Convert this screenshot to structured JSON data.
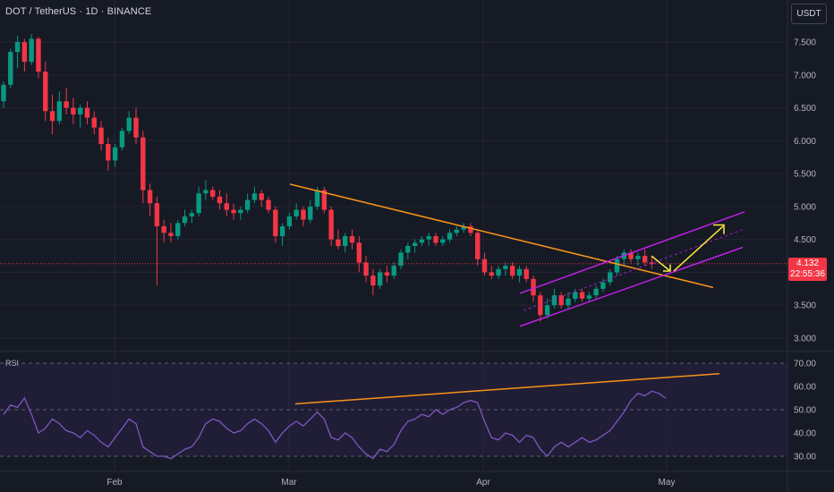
{
  "header": {
    "symbol_line": "DOT / TetherUS · 1D · BINANCE"
  },
  "currency_button": "USDT",
  "rsi_label": "RSI",
  "last_price": {
    "value": "4.132",
    "countdown": "22:55:36"
  },
  "colors": {
    "up": "#089981",
    "down": "#f23645",
    "trendline": "#f7931a",
    "channel": "#c020e8",
    "arrow": "#ffeb3b",
    "rsi_line": "#7e57c2",
    "rsi_band": "#2a2146"
  },
  "chart_data": [
    {
      "type": "candlestick",
      "title": "DOT / TetherUS · 1D · BINANCE",
      "y_ticks": [
        "7.500",
        "7.000",
        "6.500",
        "6.000",
        "5.500",
        "5.000",
        "4.500",
        "4.000",
        "3.500",
        "3.000"
      ],
      "ylim": [
        2.9,
        7.9
      ],
      "x_ticks": [
        "Feb",
        "Mar",
        "Apr",
        "May"
      ],
      "last_price": 4.132,
      "candles": [
        {
          "o": 6.6,
          "h": 6.9,
          "l": 6.5,
          "c": 6.85
        },
        {
          "o": 6.85,
          "h": 7.4,
          "l": 6.8,
          "c": 7.35
        },
        {
          "o": 7.35,
          "h": 7.6,
          "l": 7.1,
          "c": 7.5
        },
        {
          "o": 7.5,
          "h": 7.55,
          "l": 7.05,
          "c": 7.2
        },
        {
          "o": 7.2,
          "h": 7.62,
          "l": 7.15,
          "c": 7.55
        },
        {
          "o": 7.55,
          "h": 7.58,
          "l": 6.95,
          "c": 7.05
        },
        {
          "o": 7.05,
          "h": 7.2,
          "l": 6.3,
          "c": 6.45
        },
        {
          "o": 6.45,
          "h": 6.7,
          "l": 6.1,
          "c": 6.3
        },
        {
          "o": 6.3,
          "h": 6.75,
          "l": 6.25,
          "c": 6.6
        },
        {
          "o": 6.6,
          "h": 6.8,
          "l": 6.4,
          "c": 6.5
        },
        {
          "o": 6.5,
          "h": 6.65,
          "l": 6.25,
          "c": 6.4
        },
        {
          "o": 6.4,
          "h": 6.55,
          "l": 6.2,
          "c": 6.5
        },
        {
          "o": 6.5,
          "h": 6.6,
          "l": 6.25,
          "c": 6.35
        },
        {
          "o": 6.35,
          "h": 6.45,
          "l": 6.1,
          "c": 6.2
        },
        {
          "o": 6.2,
          "h": 6.3,
          "l": 5.85,
          "c": 5.95
        },
        {
          "o": 5.95,
          "h": 6.05,
          "l": 5.55,
          "c": 5.7
        },
        {
          "o": 5.7,
          "h": 5.95,
          "l": 5.6,
          "c": 5.9
        },
        {
          "o": 5.9,
          "h": 6.2,
          "l": 5.85,
          "c": 6.15
        },
        {
          "o": 6.15,
          "h": 6.45,
          "l": 6.1,
          "c": 6.35
        },
        {
          "o": 6.35,
          "h": 6.5,
          "l": 5.95,
          "c": 6.05
        },
        {
          "o": 6.05,
          "h": 6.15,
          "l": 5.05,
          "c": 5.25
        },
        {
          "o": 5.25,
          "h": 5.35,
          "l": 4.85,
          "c": 5.05
        },
        {
          "o": 5.05,
          "h": 5.15,
          "l": 3.8,
          "c": 4.7
        },
        {
          "o": 4.7,
          "h": 4.8,
          "l": 4.45,
          "c": 4.6
        },
        {
          "o": 4.6,
          "h": 4.75,
          "l": 4.45,
          "c": 4.55
        },
        {
          "o": 4.55,
          "h": 4.8,
          "l": 4.5,
          "c": 4.75
        },
        {
          "o": 4.75,
          "h": 4.95,
          "l": 4.7,
          "c": 4.85
        },
        {
          "o": 4.85,
          "h": 4.95,
          "l": 4.75,
          "c": 4.9
        },
        {
          "o": 4.9,
          "h": 5.3,
          "l": 4.85,
          "c": 5.2
        },
        {
          "o": 5.2,
          "h": 5.4,
          "l": 5.1,
          "c": 5.25
        },
        {
          "o": 5.25,
          "h": 5.3,
          "l": 5.1,
          "c": 5.15
        },
        {
          "o": 5.15,
          "h": 5.25,
          "l": 4.95,
          "c": 5.05
        },
        {
          "o": 5.05,
          "h": 5.2,
          "l": 4.85,
          "c": 4.95
        },
        {
          "o": 4.95,
          "h": 5.05,
          "l": 4.8,
          "c": 4.9
        },
        {
          "o": 4.9,
          "h": 5.0,
          "l": 4.8,
          "c": 4.95
        },
        {
          "o": 4.95,
          "h": 5.2,
          "l": 4.9,
          "c": 5.1
        },
        {
          "o": 5.1,
          "h": 5.3,
          "l": 5.05,
          "c": 5.2
        },
        {
          "o": 5.2,
          "h": 5.25,
          "l": 5.0,
          "c": 5.1
        },
        {
          "o": 5.1,
          "h": 5.15,
          "l": 4.9,
          "c": 4.95
        },
        {
          "o": 4.95,
          "h": 5.0,
          "l": 4.45,
          "c": 4.55
        },
        {
          "o": 4.55,
          "h": 4.75,
          "l": 4.4,
          "c": 4.7
        },
        {
          "o": 4.7,
          "h": 4.9,
          "l": 4.65,
          "c": 4.85
        },
        {
          "o": 4.85,
          "h": 5.05,
          "l": 4.8,
          "c": 4.95
        },
        {
          "o": 4.95,
          "h": 5.0,
          "l": 4.7,
          "c": 4.8
        },
        {
          "o": 4.8,
          "h": 5.1,
          "l": 4.75,
          "c": 5.0
        },
        {
          "o": 5.0,
          "h": 5.3,
          "l": 4.95,
          "c": 5.25
        },
        {
          "o": 5.25,
          "h": 5.3,
          "l": 4.9,
          "c": 4.95
        },
        {
          "o": 4.95,
          "h": 5.0,
          "l": 4.4,
          "c": 4.5
        },
        {
          "o": 4.5,
          "h": 4.65,
          "l": 4.35,
          "c": 4.4
        },
        {
          "o": 4.4,
          "h": 4.6,
          "l": 4.3,
          "c": 4.55
        },
        {
          "o": 4.55,
          "h": 4.65,
          "l": 4.35,
          "c": 4.45
        },
        {
          "o": 4.45,
          "h": 4.55,
          "l": 4.0,
          "c": 4.15
        },
        {
          "o": 4.15,
          "h": 4.25,
          "l": 3.85,
          "c": 3.95
        },
        {
          "o": 3.95,
          "h": 4.05,
          "l": 3.65,
          "c": 3.8
        },
        {
          "o": 3.8,
          "h": 4.05,
          "l": 3.75,
          "c": 4.0
        },
        {
          "o": 4.0,
          "h": 4.1,
          "l": 3.85,
          "c": 3.95
        },
        {
          "o": 3.95,
          "h": 4.15,
          "l": 3.9,
          "c": 4.1
        },
        {
          "o": 4.1,
          "h": 4.35,
          "l": 4.05,
          "c": 4.3
        },
        {
          "o": 4.3,
          "h": 4.45,
          "l": 4.2,
          "c": 4.4
        },
        {
          "o": 4.4,
          "h": 4.5,
          "l": 4.3,
          "c": 4.45
        },
        {
          "o": 4.45,
          "h": 4.55,
          "l": 4.4,
          "c": 4.5
        },
        {
          "o": 4.5,
          "h": 4.6,
          "l": 4.4,
          "c": 4.55
        },
        {
          "o": 4.55,
          "h": 4.6,
          "l": 4.4,
          "c": 4.45
        },
        {
          "o": 4.45,
          "h": 4.55,
          "l": 4.4,
          "c": 4.5
        },
        {
          "o": 4.5,
          "h": 4.65,
          "l": 4.45,
          "c": 4.6
        },
        {
          "o": 4.6,
          "h": 4.7,
          "l": 4.55,
          "c": 4.65
        },
        {
          "o": 4.65,
          "h": 4.75,
          "l": 4.6,
          "c": 4.7
        },
        {
          "o": 4.7,
          "h": 4.75,
          "l": 4.55,
          "c": 4.6
        },
        {
          "o": 4.6,
          "h": 4.65,
          "l": 4.1,
          "c": 4.2
        },
        {
          "o": 4.2,
          "h": 4.3,
          "l": 3.95,
          "c": 4.0
        },
        {
          "o": 4.0,
          "h": 4.1,
          "l": 3.9,
          "c": 3.95
        },
        {
          "o": 3.95,
          "h": 4.1,
          "l": 3.9,
          "c": 4.05
        },
        {
          "o": 4.05,
          "h": 4.15,
          "l": 3.95,
          "c": 4.1
        },
        {
          "o": 4.1,
          "h": 4.15,
          "l": 3.9,
          "c": 3.95
        },
        {
          "o": 3.95,
          "h": 4.1,
          "l": 3.85,
          "c": 4.05
        },
        {
          "o": 4.05,
          "h": 4.1,
          "l": 3.85,
          "c": 3.9
        },
        {
          "o": 3.9,
          "h": 3.95,
          "l": 3.55,
          "c": 3.65
        },
        {
          "o": 3.65,
          "h": 3.7,
          "l": 3.25,
          "c": 3.35
        },
        {
          "o": 3.35,
          "h": 3.6,
          "l": 3.3,
          "c": 3.5
        },
        {
          "o": 3.5,
          "h": 3.75,
          "l": 3.45,
          "c": 3.65
        },
        {
          "o": 3.65,
          "h": 3.7,
          "l": 3.45,
          "c": 3.5
        },
        {
          "o": 3.5,
          "h": 3.7,
          "l": 3.45,
          "c": 3.6
        },
        {
          "o": 3.6,
          "h": 3.75,
          "l": 3.55,
          "c": 3.7
        },
        {
          "o": 3.7,
          "h": 3.75,
          "l": 3.55,
          "c": 3.6
        },
        {
          "o": 3.6,
          "h": 3.7,
          "l": 3.55,
          "c": 3.65
        },
        {
          "o": 3.65,
          "h": 3.8,
          "l": 3.6,
          "c": 3.75
        },
        {
          "o": 3.75,
          "h": 3.9,
          "l": 3.7,
          "c": 3.85
        },
        {
          "o": 3.85,
          "h": 4.05,
          "l": 3.8,
          "c": 4.0
        },
        {
          "o": 4.0,
          "h": 4.25,
          "l": 3.95,
          "c": 4.2
        },
        {
          "o": 4.2,
          "h": 4.35,
          "l": 4.1,
          "c": 4.3
        },
        {
          "o": 4.3,
          "h": 4.35,
          "l": 4.15,
          "c": 4.2
        },
        {
          "o": 4.2,
          "h": 4.3,
          "l": 4.1,
          "c": 4.25
        },
        {
          "o": 4.25,
          "h": 4.35,
          "l": 4.1,
          "c": 4.15
        },
        {
          "o": 4.15,
          "h": 4.25,
          "l": 4.05,
          "c": 4.132
        }
      ]
    },
    {
      "type": "line",
      "title": "RSI",
      "y_ticks": [
        "70.00",
        "60.00",
        "50.00",
        "40.00",
        "30.00"
      ],
      "ylim": [
        27,
        73
      ],
      "bands": [
        30,
        50,
        70
      ],
      "values": [
        48,
        52,
        51,
        55,
        48,
        40,
        42,
        46,
        44,
        41,
        40,
        38,
        41,
        39,
        36,
        34,
        38,
        42,
        46,
        44,
        34,
        32,
        30,
        30,
        29,
        31,
        33,
        34,
        38,
        44,
        46,
        45,
        42,
        40,
        41,
        44,
        46,
        44,
        41,
        36,
        40,
        43,
        45,
        43,
        46,
        49,
        46,
        38,
        37,
        40,
        38,
        34,
        31,
        29,
        33,
        32,
        35,
        41,
        45,
        46,
        48,
        47,
        50,
        48,
        50,
        51,
        53,
        54,
        53,
        45,
        38,
        37,
        40,
        39,
        36,
        39,
        38,
        33,
        30,
        34,
        36,
        34,
        36,
        38,
        36,
        37,
        39,
        41,
        45,
        49,
        54,
        57,
        56,
        58,
        57,
        55
      ]
    }
  ]
}
